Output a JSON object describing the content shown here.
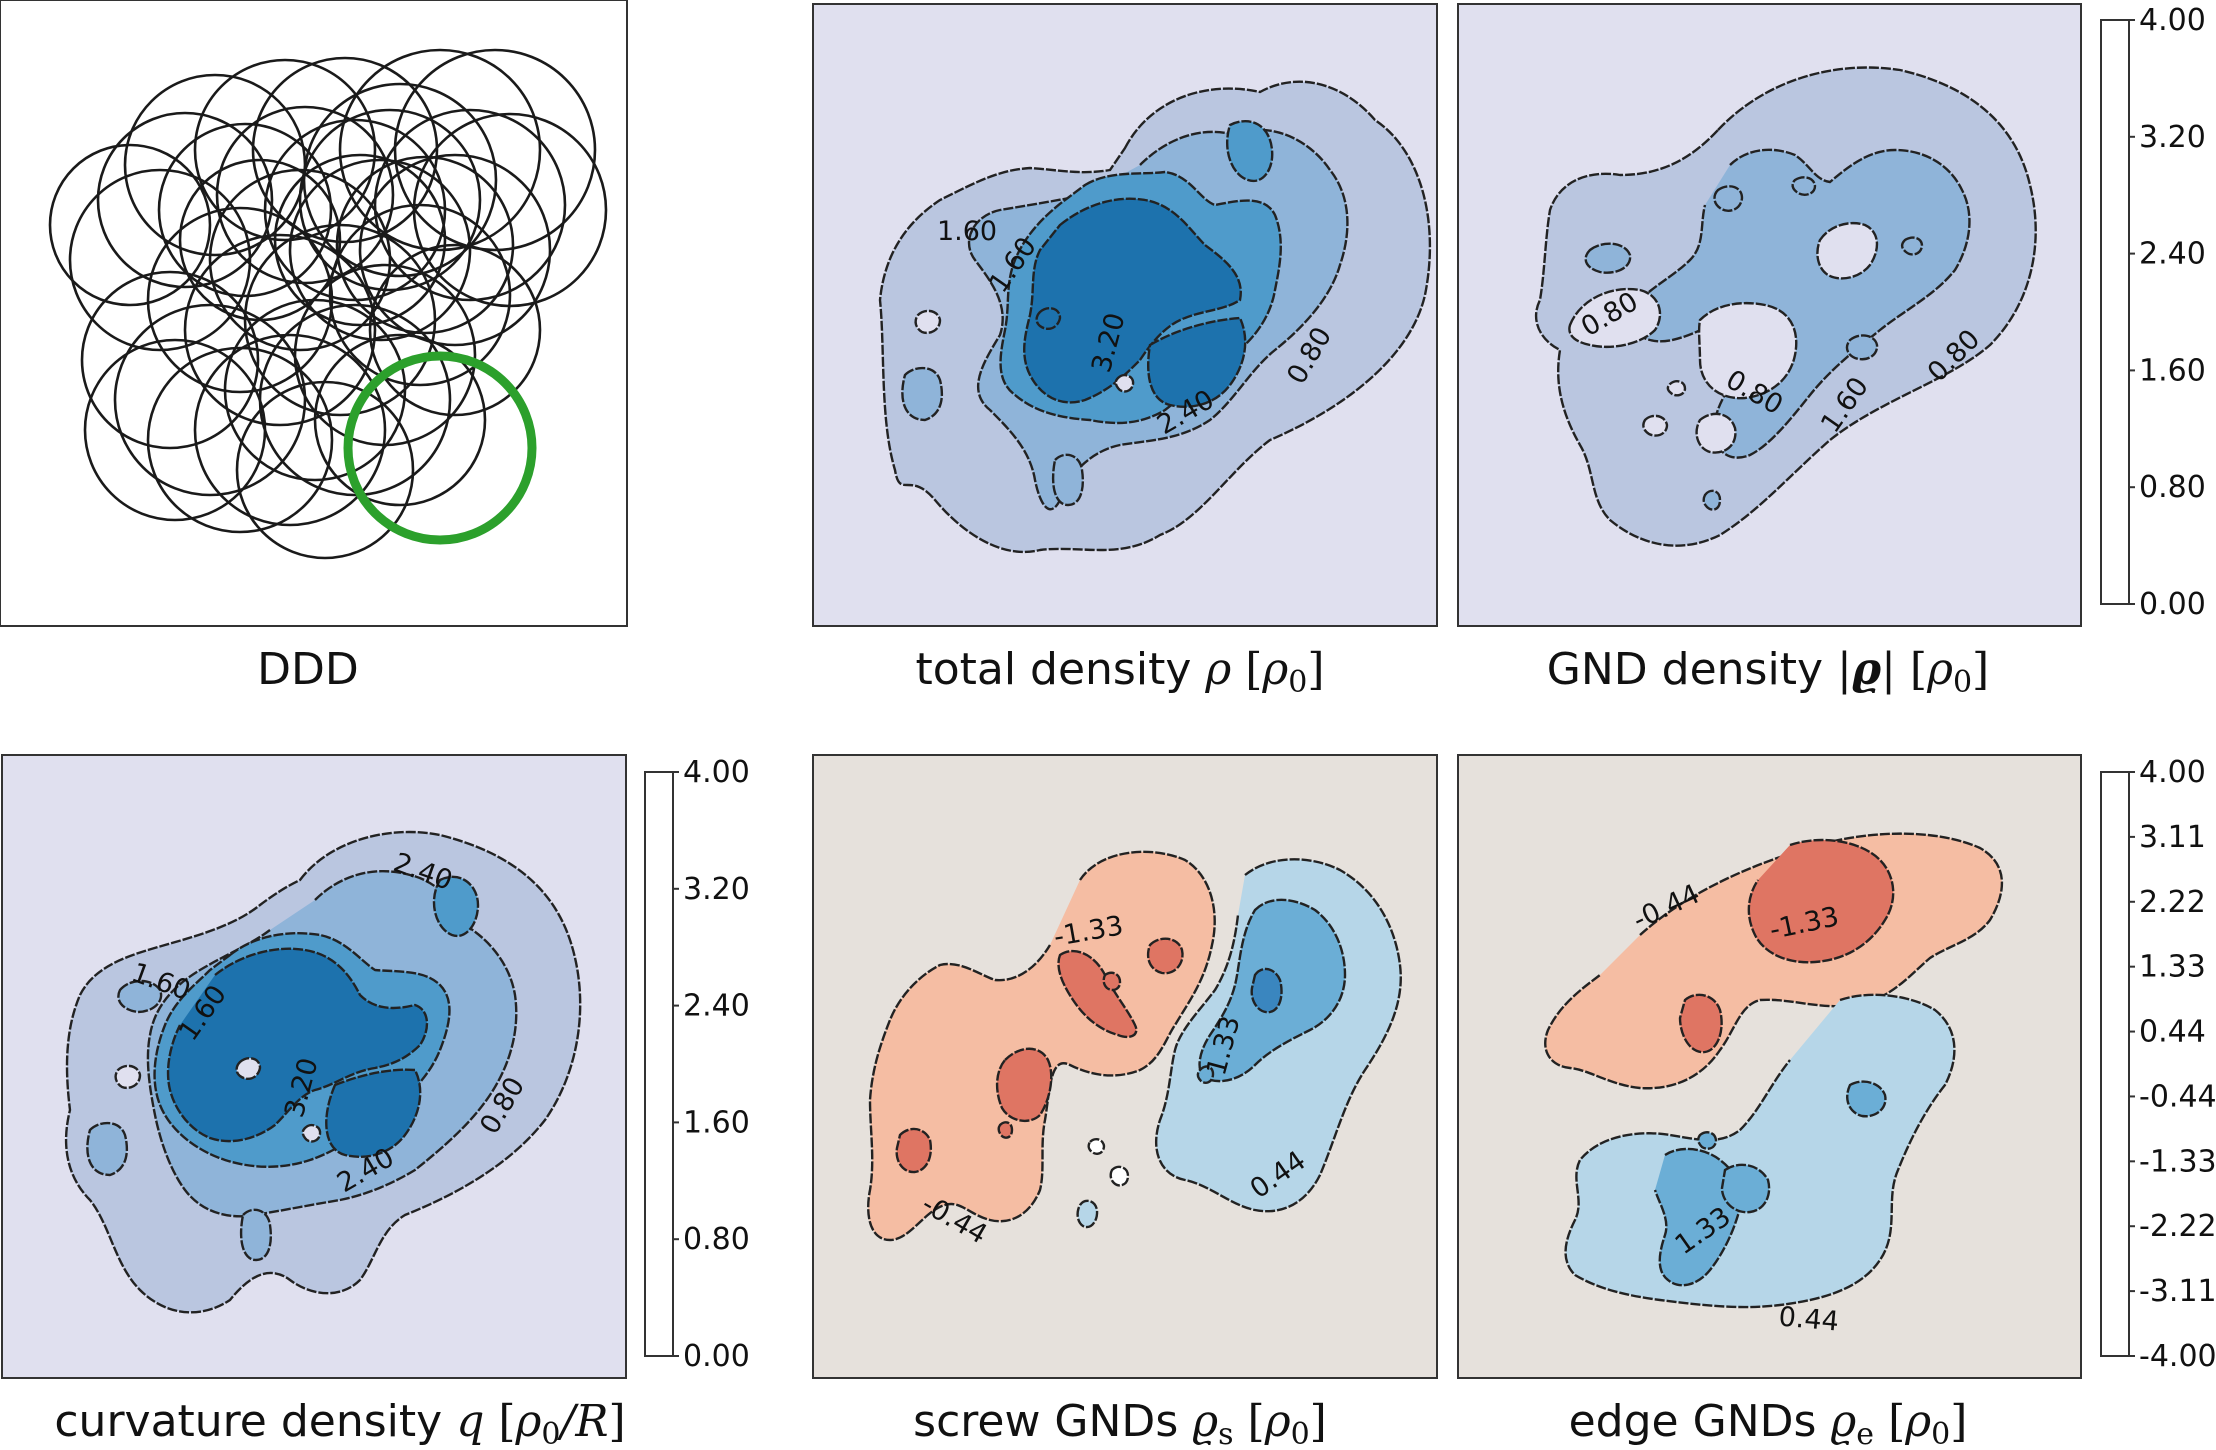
{
  "chart_data": [
    {
      "type": "scatter",
      "id": "ddd",
      "title": "DDD",
      "description": "dislocation loops",
      "loops": [
        [
          185,
          200,
          87
        ],
        [
          160,
          260,
          90
        ],
        [
          130,
          225,
          80
        ],
        [
          215,
          165,
          90
        ],
        [
          245,
          210,
          86
        ],
        [
          285,
          150,
          90
        ],
        [
          305,
          195,
          88
        ],
        [
          345,
          150,
          92
        ],
        [
          355,
          210,
          90
        ],
        [
          380,
          250,
          90
        ],
        [
          400,
          180,
          96
        ],
        [
          440,
          150,
          100
        ],
        [
          470,
          205,
          95
        ],
        [
          495,
          150,
          100
        ],
        [
          510,
          210,
          96
        ],
        [
          455,
          250,
          95
        ],
        [
          425,
          245,
          88
        ],
        [
          390,
          200,
          90
        ],
        [
          240,
          300,
          92
        ],
        [
          280,
          330,
          95
        ],
        [
          300,
          260,
          90
        ],
        [
          340,
          320,
          95
        ],
        [
          170,
          360,
          88
        ],
        [
          210,
          400,
          95
        ],
        [
          175,
          430,
          90
        ],
        [
          240,
          440,
          92
        ],
        [
          290,
          430,
          95
        ],
        [
          315,
          390,
          90
        ],
        [
          355,
          400,
          95
        ],
        [
          385,
          355,
          90
        ],
        [
          400,
          420,
          85
        ],
        [
          420,
          295,
          90
        ],
        [
          455,
          330,
          85
        ],
        [
          325,
          470,
          88
        ],
        [
          360,
          240,
          85
        ],
        [
          260,
          240,
          80
        ]
      ],
      "highlight_loop": [
        440,
        448,
        92
      ],
      "highlight_color": "#2ca02c",
      "line_color": "#1a1a1a"
    },
    {
      "type": "heatmap",
      "id": "total",
      "title": "total density ρ [ρ₀]",
      "title_parts": {
        "name": "total density",
        "symbol": "ρ",
        "unit_open": "[",
        "unit_sym": "ρ",
        "unit_sub": "0",
        "unit_close": "]"
      },
      "levels": [
        0.0,
        0.8,
        1.6,
        2.4,
        3.2,
        4.0
      ],
      "contour_labels": [
        "1.60",
        "1.60",
        "3.20",
        "2.40",
        "0.80"
      ],
      "colorscale": "sequential-blue"
    },
    {
      "type": "heatmap",
      "id": "gnd",
      "title": "GND density |ϱ| [ρ₀]",
      "title_parts": {
        "name": "GND density",
        "symbol": "ϱ",
        "unit_open": "[",
        "unit_sym": "ρ",
        "unit_sub": "0",
        "unit_close": "]"
      },
      "levels": [
        0.0,
        0.8,
        1.6,
        2.4,
        3.2,
        4.0
      ],
      "contour_labels": [
        "0.80",
        "0.80",
        "1.60",
        "0.80"
      ],
      "colorscale": "sequential-blue"
    },
    {
      "type": "heatmap",
      "id": "curvature",
      "title": "curvature density q [ρ₀/R]",
      "title_parts": {
        "name": "curvature density",
        "symbol": "q",
        "unit_open": "[",
        "unit_sym": "ρ",
        "unit_sub": "0",
        "unit_tail": "/R",
        "unit_close": "]"
      },
      "levels": [
        0.0,
        0.8,
        1.6,
        2.4,
        3.2,
        4.0
      ],
      "contour_labels": [
        "2.40",
        "1.60",
        "1.60",
        "3.20",
        "2.40",
        "0.80"
      ],
      "colorscale": "sequential-blue"
    },
    {
      "type": "heatmap",
      "id": "screw",
      "title": "screw GNDs ϱs [ρ₀]",
      "title_parts": {
        "name": "screw GNDs",
        "symbol": "ϱ",
        "symbol_sub": "s",
        "unit_open": "[",
        "unit_sym": "ρ",
        "unit_sub": "0",
        "unit_close": "]"
      },
      "levels": [
        -4.0,
        -3.11,
        -2.22,
        -1.33,
        -0.44,
        0.44,
        1.33,
        2.22,
        3.11,
        4.0
      ],
      "contour_labels": [
        "-1.33",
        "1.33",
        "0.44",
        "-0.44"
      ],
      "colorscale": "diverging-red-blue"
    },
    {
      "type": "heatmap",
      "id": "edge",
      "title": "edge GNDs ϱe [ρ₀]",
      "title_parts": {
        "name": "edge GNDs",
        "symbol": "ϱ",
        "symbol_sub": "e",
        "unit_open": "[",
        "unit_sym": "ρ",
        "unit_sub": "0",
        "unit_close": "]"
      },
      "levels": [
        -4.0,
        -3.11,
        -2.22,
        -1.33,
        -0.44,
        0.44,
        1.33,
        2.22,
        3.11,
        4.0
      ],
      "contour_labels": [
        "-0.44",
        "-1.33",
        "1.33",
        "0.44"
      ],
      "colorscale": "diverging-red-blue"
    }
  ],
  "colorbars": {
    "sequential": {
      "ticks": [
        "0.00",
        "0.80",
        "1.60",
        "2.40",
        "3.20",
        "4.00"
      ],
      "colors": [
        "#e0e0ef",
        "#bac6e0",
        "#8fb4d9",
        "#4f9bcb",
        "#1d72ad"
      ]
    },
    "diverging": {
      "ticks": [
        "-4.00",
        "-3.11",
        "-2.22",
        "-1.33",
        "-0.44",
        "0.44",
        "1.33",
        "2.22",
        "3.11",
        "4.00"
      ],
      "colors": [
        "#8e0b22",
        "#c8293b",
        "#df7563",
        "#f5bda3",
        "#e6e1dc",
        "#b6d6e8",
        "#6baed6",
        "#3a86bf",
        "#1a5b98"
      ]
    }
  }
}
